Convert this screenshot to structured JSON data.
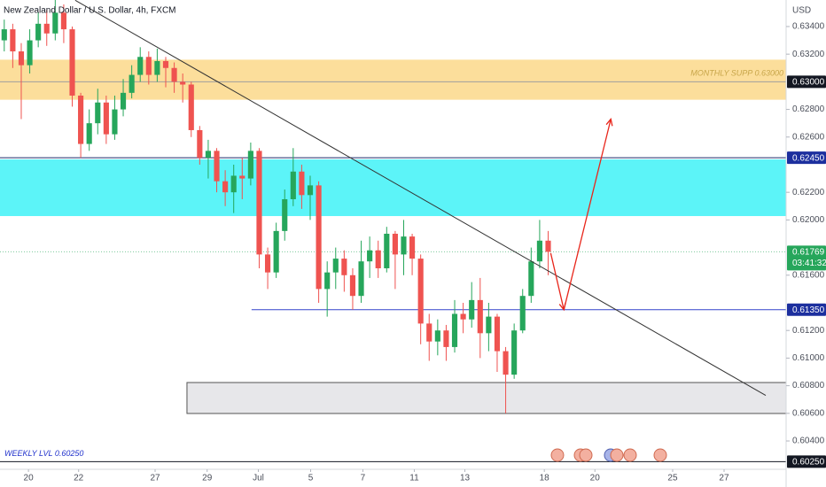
{
  "chart_data": {
    "type": "candlestick",
    "title": "New Zealand Dollar / U.S. Dollar, 4h, FXCM",
    "currency": "USD",
    "up_color": "#26a65b",
    "down_color": "#ef5350",
    "open": [
      0.633,
      0.6338,
      0.6322,
      0.6312,
      0.633,
      0.6342,
      0.6335,
      0.635,
      0.6338,
      0.629,
      0.6255,
      0.627,
      0.6285,
      0.6262,
      0.628,
      0.6292,
      0.6305,
      0.6318,
      0.6305,
      0.6315,
      0.631,
      0.63,
      0.6298,
      0.6265,
      0.6245,
      0.625,
      0.6228,
      0.622,
      0.6232,
      0.623,
      0.625,
      0.6175,
      0.6162,
      0.6192,
      0.6215,
      0.6235,
      0.6218,
      0.6225,
      0.615,
      0.6162,
      0.6172,
      0.616,
      0.6145,
      0.617,
      0.6178,
      0.6165,
      0.619,
      0.6175,
      0.6188,
      0.6172,
      0.6125,
      0.6112,
      0.612,
      0.6108,
      0.6132,
      0.6128,
      0.6142,
      0.6118,
      0.613,
      0.6105,
      0.6088,
      0.612,
      0.6145,
      0.617,
      0.6185
    ],
    "high": [
      0.6345,
      0.6342,
      0.6328,
      0.6338,
      0.635,
      0.6352,
      0.636,
      0.6356,
      0.634,
      0.6292,
      0.628,
      0.6295,
      0.629,
      0.629,
      0.6302,
      0.6312,
      0.6325,
      0.6322,
      0.6324,
      0.6318,
      0.6314,
      0.6306,
      0.63,
      0.6268,
      0.6258,
      0.6252,
      0.6236,
      0.624,
      0.6245,
      0.6256,
      0.6252,
      0.618,
      0.6198,
      0.6222,
      0.6252,
      0.624,
      0.6232,
      0.6228,
      0.617,
      0.618,
      0.6178,
      0.6165,
      0.6185,
      0.6188,
      0.6185,
      0.6195,
      0.6192,
      0.62,
      0.619,
      0.6175,
      0.6132,
      0.6128,
      0.6124,
      0.6142,
      0.614,
      0.6155,
      0.6158,
      0.614,
      0.6132,
      0.6108,
      0.6125,
      0.615,
      0.618,
      0.62,
      0.6192
    ],
    "low": [
      0.6322,
      0.631,
      0.6273,
      0.6306,
      0.6325,
      0.6326,
      0.633,
      0.6328,
      0.6282,
      0.6245,
      0.625,
      0.6262,
      0.6255,
      0.6258,
      0.6275,
      0.6288,
      0.63,
      0.6298,
      0.63,
      0.6296,
      0.6292,
      0.6285,
      0.626,
      0.624,
      0.623,
      0.622,
      0.621,
      0.6205,
      0.6215,
      0.6225,
      0.6165,
      0.615,
      0.6158,
      0.6185,
      0.621,
      0.6208,
      0.62,
      0.614,
      0.613,
      0.615,
      0.6148,
      0.6135,
      0.614,
      0.6158,
      0.6158,
      0.6162,
      0.615,
      0.616,
      0.616,
      0.611,
      0.6098,
      0.6102,
      0.6098,
      0.6104,
      0.6118,
      0.6122,
      0.61,
      0.6105,
      0.609,
      0.606,
      0.6085,
      0.6118,
      0.614,
      0.6165,
      0.616
    ],
    "close": [
      0.6338,
      0.6322,
      0.6312,
      0.633,
      0.6342,
      0.6335,
      0.635,
      0.6338,
      0.629,
      0.6255,
      0.627,
      0.6285,
      0.6262,
      0.628,
      0.6292,
      0.6305,
      0.6318,
      0.6305,
      0.6315,
      0.631,
      0.63,
      0.6298,
      0.6265,
      0.6245,
      0.625,
      0.6228,
      0.622,
      0.6232,
      0.623,
      0.625,
      0.6175,
      0.6162,
      0.6192,
      0.6215,
      0.6235,
      0.6218,
      0.6225,
      0.615,
      0.6162,
      0.6172,
      0.616,
      0.6145,
      0.617,
      0.6178,
      0.6165,
      0.619,
      0.6175,
      0.6188,
      0.6172,
      0.6125,
      0.6112,
      0.612,
      0.6108,
      0.6132,
      0.6128,
      0.6142,
      0.6118,
      0.613,
      0.6105,
      0.6088,
      0.612,
      0.6145,
      0.617,
      0.6185,
      0.61769
    ],
    "xlim": [
      0,
      185
    ],
    "xticks": [
      {
        "value": 6.7,
        "label": "20"
      },
      {
        "value": 18.5,
        "label": "22"
      },
      {
        "value": 36.5,
        "label": "27"
      },
      {
        "value": 48.75,
        "label": "29"
      },
      {
        "value": 60.8,
        "label": "Jul"
      },
      {
        "value": 73.1,
        "label": "5"
      },
      {
        "value": 85.4,
        "label": "7"
      },
      {
        "value": 97.5,
        "label": "11"
      },
      {
        "value": 109.4,
        "label": "13"
      },
      {
        "value": 128.1,
        "label": "18"
      },
      {
        "value": 140,
        "label": "20"
      },
      {
        "value": 158.3,
        "label": "25"
      },
      {
        "value": 170.4,
        "label": "27"
      }
    ],
    "ylim": [
      0.60195,
      0.63592
    ],
    "yticks": [
      {
        "value": 0.634,
        "label": "0.63400"
      },
      {
        "value": 0.632,
        "label": "0.63200"
      },
      {
        "value": 0.628,
        "label": "0.62800"
      },
      {
        "value": 0.626,
        "label": "0.62600"
      },
      {
        "value": 0.622,
        "label": "0.62200"
      },
      {
        "value": 0.62,
        "label": "0.62000"
      },
      {
        "value": 0.616,
        "label": "0.61600"
      },
      {
        "value": 0.612,
        "label": "0.61200"
      },
      {
        "value": 0.61,
        "label": "0.61000"
      },
      {
        "value": 0.608,
        "label": "0.60800"
      },
      {
        "value": 0.606,
        "label": "0.60600"
      },
      {
        "value": 0.604,
        "label": "0.60400"
      }
    ],
    "zones": [
      {
        "top": 0.6316,
        "bottom": 0.6287,
        "x_start": 0,
        "color": "#fbd889"
      },
      {
        "top": 0.62438,
        "bottom": 0.62028,
        "x_start": 0,
        "color": "#40f2f7"
      },
      {
        "top": 0.60823,
        "bottom": 0.60599,
        "x_start": 44,
        "color": "#e3e3e6"
      }
    ],
    "hlines": [
      {
        "value": 0.63,
        "label": "0.63000",
        "color": "#9e9e9e",
        "badge": "#131722",
        "note": "MONTHLY SUPP 0.63000",
        "note_color": "#c8a64a",
        "x_start": 0
      },
      {
        "value": 0.6245,
        "label": "0.62450",
        "color": "#1c2a6b",
        "badge": "#1c2f9e",
        "x_start": 0
      },
      {
        "value": 0.6135,
        "label": "0.61350",
        "color": "#3344cc",
        "badge": "#1c2f9e",
        "x_start": 59.2
      },
      {
        "value": 0.6025,
        "label": "0.60250",
        "color": "#131722",
        "badge": "#131722",
        "note": "WEEKLY LVL 0.60250",
        "note_color": "#2233cc",
        "x_start": 0
      }
    ],
    "last_price": {
      "value": 0.61769,
      "label": "0.61769",
      "countdown": "03:41:32",
      "color": "#26a65b"
    },
    "trend_line": {
      "x": [
        17.7,
        180.2
      ],
      "price": [
        0.6359,
        0.6073
      ],
      "color": "#333333"
    },
    "arrow": {
      "x": [
        129.6,
        132.7,
        143.75
      ],
      "price": [
        0.6176,
        0.6135,
        0.6273
      ],
      "color": "#e8261b"
    }
  }
}
